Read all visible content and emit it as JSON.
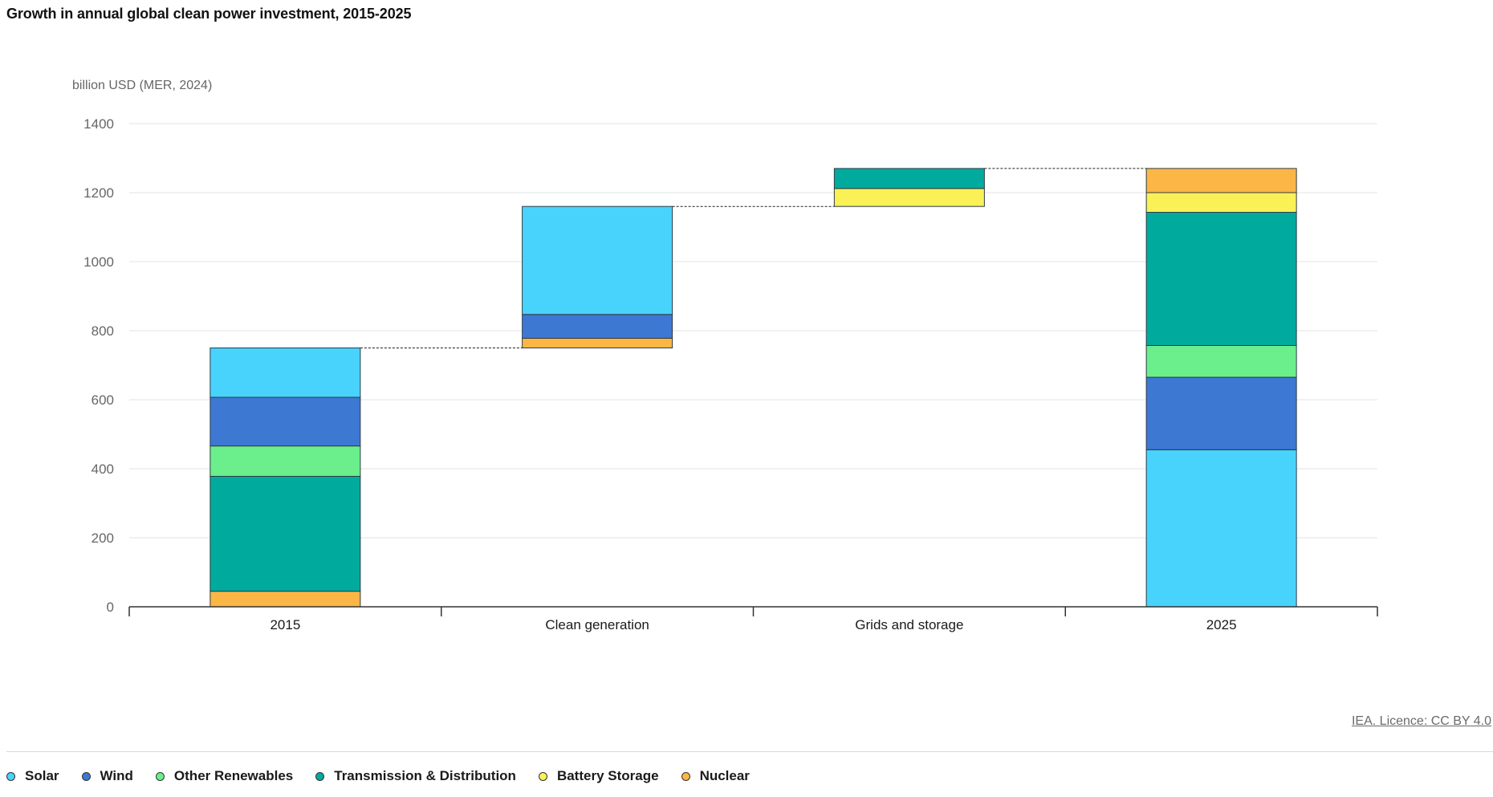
{
  "page": {
    "title": "Growth in annual global clean power investment, 2015-2025",
    "licence": "IEA. Licence: CC BY 4.0"
  },
  "legend": [
    {
      "label": "Solar",
      "color": "#48d3fd"
    },
    {
      "label": "Wind",
      "color": "#3d78d3"
    },
    {
      "label": "Other Renewables",
      "color": "#6aef8c"
    },
    {
      "label": "Transmission & Distribution",
      "color": "#00ab9e"
    },
    {
      "label": "Battery Storage",
      "color": "#f9f156"
    },
    {
      "label": "Nuclear",
      "color": "#fbb645"
    }
  ],
  "chart_data": {
    "type": "bar",
    "subtype": "waterfall-stacked",
    "title": "Growth in annual global clean power investment, 2015-2025",
    "ylabel": "billion USD (MER, 2024)",
    "xlabel": "",
    "ylim": [
      0,
      1400
    ],
    "yticks": [
      0,
      200,
      400,
      600,
      800,
      1000,
      1200,
      1400
    ],
    "grid": true,
    "legend_position": "bottom",
    "categories": [
      "2015",
      "Clean generation",
      "Grids and storage",
      "2025"
    ],
    "bars": [
      {
        "category": "2015",
        "kind": "total",
        "segments": [
          {
            "series": "Nuclear",
            "start": 0,
            "end": 45
          },
          {
            "series": "Transmission & Distribution",
            "start": 45,
            "end": 378
          },
          {
            "series": "Other Renewables",
            "start": 378,
            "end": 466
          },
          {
            "series": "Wind",
            "start": 466,
            "end": 607
          },
          {
            "series": "Solar",
            "start": 607,
            "end": 750
          }
        ]
      },
      {
        "category": "Clean generation",
        "kind": "increment",
        "segments": [
          {
            "series": "Nuclear",
            "start": 750,
            "end": 778
          },
          {
            "series": "Wind",
            "start": 778,
            "end": 847
          },
          {
            "series": "Solar",
            "start": 847,
            "end": 1160
          }
        ]
      },
      {
        "category": "Grids and storage",
        "kind": "increment",
        "segments": [
          {
            "series": "Battery Storage",
            "start": 1160,
            "end": 1212
          },
          {
            "series": "Transmission & Distribution",
            "start": 1212,
            "end": 1270
          }
        ]
      },
      {
        "category": "2025",
        "kind": "total",
        "segments": [
          {
            "series": "Solar",
            "start": 0,
            "end": 455
          },
          {
            "series": "Wind",
            "start": 455,
            "end": 665
          },
          {
            "series": "Other Renewables",
            "start": 665,
            "end": 757
          },
          {
            "series": "Transmission & Distribution",
            "start": 757,
            "end": 1143
          },
          {
            "series": "Battery Storage",
            "start": 1143,
            "end": 1200
          },
          {
            "series": "Nuclear",
            "start": 1200,
            "end": 1270
          }
        ]
      }
    ],
    "connectors": [
      {
        "from": "2015",
        "to": "Clean generation",
        "value": 750
      },
      {
        "from": "Clean generation",
        "to": "Grids and storage",
        "value": 1160
      },
      {
        "from": "Grids and storage",
        "to": "2025",
        "value": 1270
      }
    ]
  }
}
